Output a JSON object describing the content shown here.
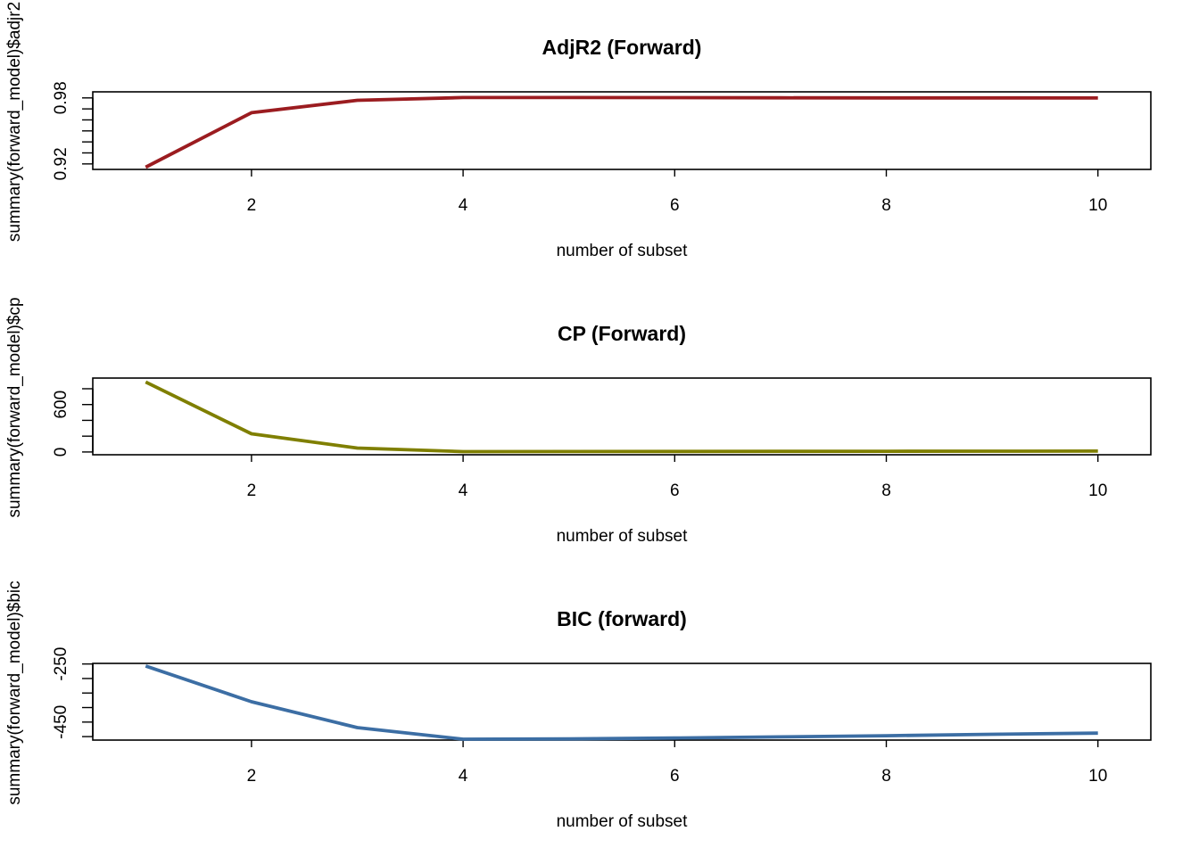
{
  "chart_data": [
    {
      "type": "line",
      "title": "AdjR2 (Forward)",
      "xlabel": "number of subset",
      "ylabel": "summary(forward_model)$adjr2",
      "x": [
        1,
        2,
        3,
        4,
        5,
        6,
        7,
        8,
        9,
        10
      ],
      "series": [
        {
          "values": [
            0.917,
            0.9665,
            0.9778,
            0.9803,
            0.9803,
            0.9802,
            0.9801,
            0.98,
            0.98,
            0.9799
          ],
          "color": "#9b1c20"
        }
      ],
      "xlim": [
        0.5,
        10.5
      ],
      "ylim": [
        0.915,
        0.9855
      ],
      "xticks": [
        2,
        4,
        6,
        8,
        10
      ],
      "yticks": [
        0.92,
        0.98
      ],
      "yminorticks": [
        0.93,
        0.94,
        0.95,
        0.96,
        0.97
      ],
      "grid": false,
      "legend": "none"
    },
    {
      "type": "line",
      "title": "CP (Forward)",
      "xlabel": "number of subset",
      "ylabel": "summary(forward_model)$cp",
      "x": [
        1,
        2,
        3,
        4,
        5,
        6,
        7,
        8,
        9,
        10
      ],
      "series": [
        {
          "values": [
            885,
            230,
            50,
            5,
            6,
            7,
            8,
            9,
            10,
            11
          ],
          "color": "#7f7f00"
        }
      ],
      "xlim": [
        0.5,
        10.5
      ],
      "ylim": [
        -35,
        935
      ],
      "xticks": [
        2,
        4,
        6,
        8,
        10
      ],
      "yticks": [
        0,
        600
      ],
      "yminorticks": [
        200,
        400,
        800
      ],
      "grid": false,
      "legend": "none"
    },
    {
      "type": "line",
      "title": "BIC (forward)",
      "xlabel": "number of subset",
      "ylabel": "summary(forward_model)$bic",
      "x": [
        1,
        2,
        3,
        4,
        5,
        6,
        7,
        8,
        9,
        10
      ],
      "series": [
        {
          "values": [
            -257,
            -380,
            -469,
            -509,
            -508,
            -505,
            -501,
            -497,
            -492,
            -488
          ],
          "color": "#3c6ea4"
        }
      ],
      "xlim": [
        0.5,
        10.5
      ],
      "ylim": [
        -512,
        -248
      ],
      "xticks": [
        2,
        4,
        6,
        8,
        10
      ],
      "yticks": [
        -250,
        -450
      ],
      "yminorticks": [
        -300,
        -350,
        -400,
        -500
      ],
      "grid": false,
      "legend": "none"
    }
  ]
}
